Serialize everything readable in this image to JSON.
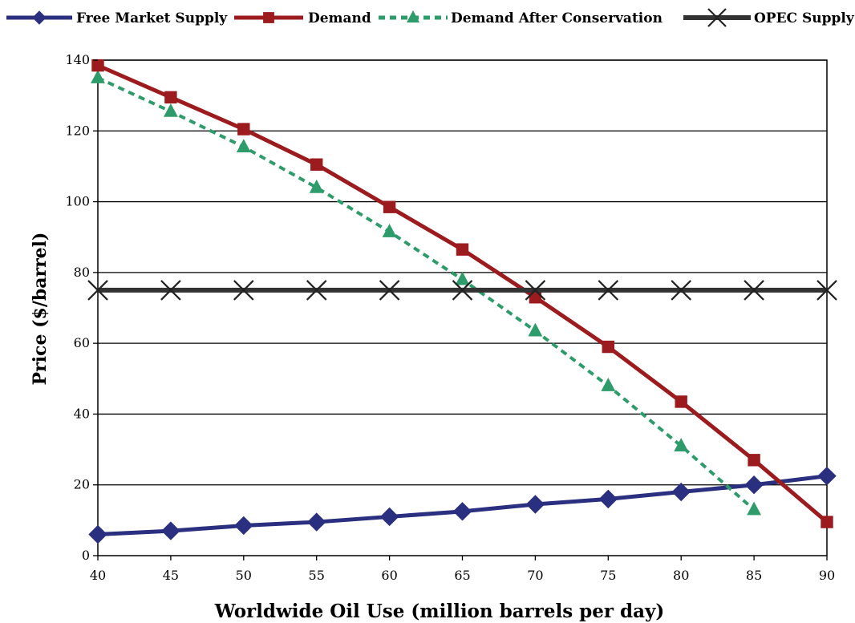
{
  "chart_data": {
    "type": "line",
    "title": "",
    "xlabel": "Worldwide Oil Use (million barrels per day)",
    "ylabel": "Price ($/barrel)",
    "xlim": [
      40,
      90
    ],
    "ylim": [
      0,
      140
    ],
    "x_ticks": [
      "40",
      "45",
      "50",
      "55",
      "60",
      "65",
      "70",
      "75",
      "80",
      "85",
      "90"
    ],
    "y_ticks": [
      "0",
      "20",
      "40",
      "60",
      "80",
      "100",
      "120",
      "140"
    ],
    "grid": "horizontal",
    "legend_position": "top",
    "x": [
      40,
      45,
      50,
      55,
      60,
      65,
      70,
      75,
      80,
      85,
      90
    ],
    "series": [
      {
        "name": "Free Market Supply",
        "color": "#2b2f7f",
        "marker": "diamond",
        "dash": "solid",
        "values": [
          6,
          7,
          8.5,
          9.5,
          11,
          12.5,
          14.5,
          16,
          18,
          20,
          22.5
        ]
      },
      {
        "name": "Demand",
        "color": "#9b1b1e",
        "marker": "square",
        "dash": "solid",
        "values": [
          138.5,
          129.5,
          120.5,
          110.5,
          98.5,
          86.5,
          73,
          59,
          43.5,
          27,
          9.5
        ]
      },
      {
        "name": "Demand After Conservation",
        "color": "#2e9c6a",
        "marker": "triangle",
        "dash": "dashed",
        "values": [
          135,
          125.5,
          115.5,
          104,
          91.5,
          78,
          63.5,
          48,
          31,
          13,
          null
        ]
      },
      {
        "name": "OPEC Supply",
        "color": "#333333",
        "marker": "x",
        "dash": "solid",
        "values": [
          75,
          75,
          75,
          75,
          75,
          75,
          75,
          75,
          75,
          75,
          75
        ]
      }
    ]
  }
}
